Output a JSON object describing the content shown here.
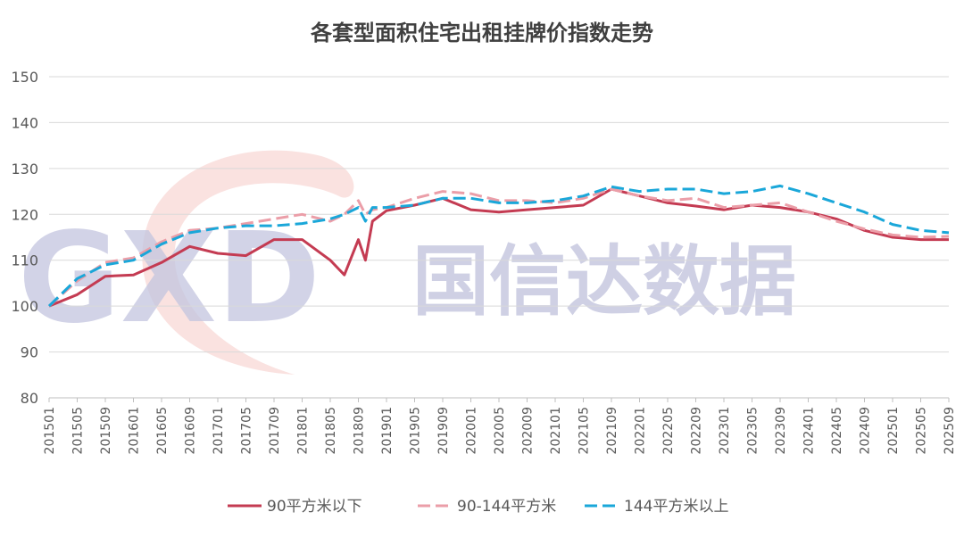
{
  "watermark": {
    "logo": "GXD",
    "text": "国信达数据",
    "logo_accent_color": "#f3b9b5",
    "text_color": "#c3c5df"
  },
  "chart_data": {
    "type": "line",
    "title": "各套型面积住宅出租挂牌价指数走势",
    "xlabel": "",
    "ylabel": "",
    "ylim": [
      80,
      150
    ],
    "yticks": [
      "80",
      "90",
      "100",
      "110",
      "120",
      "130",
      "140",
      "150"
    ],
    "xticks": [
      "201501",
      "201505",
      "201509",
      "201601",
      "201605",
      "201609",
      "201701",
      "201705",
      "201709",
      "201801",
      "201805",
      "201809",
      "201901",
      "201905",
      "201909",
      "202001",
      "202005",
      "202009",
      "202101",
      "202105",
      "202109",
      "202201",
      "202205",
      "202209",
      "202301",
      "202305",
      "202309",
      "202401",
      "202405",
      "202409",
      "202501",
      "202505",
      "202509"
    ],
    "grid": "horizontal",
    "legend_position": "bottom",
    "x": [
      "201501",
      "201505",
      "201509",
      "201601",
      "201605",
      "201609",
      "201701",
      "201705",
      "201709",
      "201801",
      "201805",
      "201807",
      "201809",
      "201810",
      "201811",
      "201901",
      "201905",
      "201909",
      "202001",
      "202005",
      "202009",
      "202101",
      "202105",
      "202109",
      "202201",
      "202205",
      "202209",
      "202301",
      "202305",
      "202309",
      "202401",
      "202405",
      "202409",
      "202501",
      "202505",
      "202509"
    ],
    "series": [
      {
        "name": "90平方米以下",
        "color": "#c43b52",
        "dash": "solid",
        "values": [
          100,
          102.5,
          106.5,
          106.8,
          109.5,
          113,
          111.5,
          111,
          114.5,
          114.5,
          110,
          106.8,
          114.5,
          110,
          118.5,
          120.8,
          122,
          123.5,
          121,
          120.5,
          121,
          121.5,
          122,
          125.5,
          124,
          122.5,
          121.8,
          121,
          122,
          121.5,
          120.5,
          119,
          116.5,
          115,
          114.5,
          114.5
        ]
      },
      {
        "name": "90-144平方米",
        "color": "#eb9ea8",
        "dash": "dash",
        "values": [
          100,
          105.5,
          109.5,
          110.5,
          114,
          116.5,
          117,
          118,
          119,
          120,
          118.5,
          120,
          123,
          120,
          121,
          121.5,
          123.5,
          125,
          124.5,
          123,
          123,
          122.5,
          123.5,
          125.5,
          124,
          123,
          123.5,
          121.5,
          122,
          122.5,
          120.5,
          118.5,
          116.8,
          115.5,
          115,
          115.2
        ]
      },
      {
        "name": "144平方米以上",
        "color": "#1aa7d9",
        "dash": "dash",
        "values": [
          100,
          106,
          109,
          110,
          113.5,
          116,
          117,
          117.5,
          117.5,
          118,
          119,
          120,
          121.5,
          118.5,
          121.5,
          121.5,
          122,
          123.5,
          123.5,
          122.5,
          122.5,
          123,
          124,
          126,
          125,
          125.5,
          125.5,
          124.5,
          125,
          126.2,
          124.5,
          122.5,
          120.5,
          117.8,
          116.5,
          116
        ]
      }
    ]
  }
}
